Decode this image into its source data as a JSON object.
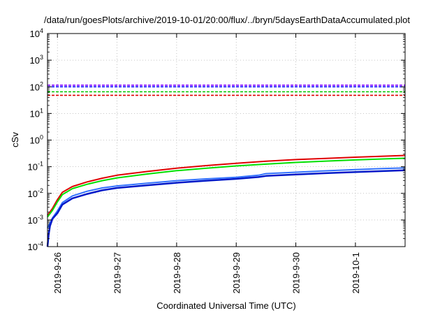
{
  "chart_data": {
    "type": "line",
    "title": "/data/run/goesPlots/archive/2019-10-01/20:00/flux/../bryn/5daysEarthDataAccumulated.plot",
    "xlabel": "Coordinated Universal Time (UTC)",
    "ylabel": "cSv",
    "yscale": "log",
    "ylim": [
      0.0001,
      10000
    ],
    "xlim": [
      "2019-09-25 20:00",
      "2019-10-01 20:00"
    ],
    "grid": true,
    "x_ticks": [
      {
        "date": "2019-09-26 00:00",
        "label": "2019-9-26"
      },
      {
        "date": "2019-09-27 00:00",
        "label": "2019-9-27"
      },
      {
        "date": "2019-09-28 00:00",
        "label": "2019-9-28"
      },
      {
        "date": "2019-09-29 00:00",
        "label": "2019-9-29"
      },
      {
        "date": "2019-09-30 00:00",
        "label": "2019-9-30"
      },
      {
        "date": "2019-10-01 00:00",
        "label": "2019-10-1"
      }
    ],
    "y_ticks": [
      {
        "value": 0.0001,
        "base": "10",
        "exp": "-4"
      },
      {
        "value": 0.001,
        "base": "10",
        "exp": "-3"
      },
      {
        "value": 0.01,
        "base": "10",
        "exp": "-2"
      },
      {
        "value": 0.1,
        "base": "10",
        "exp": "-1"
      },
      {
        "value": 1,
        "base": "10",
        "exp": "0"
      },
      {
        "value": 10,
        "base": "10",
        "exp": "1"
      },
      {
        "value": 100,
        "base": "10",
        "exp": "2"
      },
      {
        "value": 1000,
        "base": "10",
        "exp": "3"
      },
      {
        "value": 10000,
        "base": "10",
        "exp": "4"
      }
    ],
    "thresholds": [
      {
        "color": "#8000ff",
        "value": 115
      },
      {
        "color": "#0000ff",
        "value": 100
      },
      {
        "color": "#00c800",
        "value": 65
      },
      {
        "color": "#e00000",
        "value": 48
      }
    ],
    "series": [
      {
        "color": "#e00000",
        "width": 2,
        "x": [
          "2019-09-25 20:00",
          "2019-09-25 22:00",
          "2019-09-26 00:00",
          "2019-09-26 02:00",
          "2019-09-26 06:00",
          "2019-09-26 12:00",
          "2019-09-26 18:00",
          "2019-09-27 00:00",
          "2019-09-27 12:00",
          "2019-09-28 00:00",
          "2019-09-28 12:00",
          "2019-09-29 00:00",
          "2019-09-29 12:00",
          "2019-09-30 00:00",
          "2019-09-30 12:00",
          "2019-10-01 00:00",
          "2019-10-01 12:00",
          "2019-10-01 20:00"
        ],
        "y": [
          0.0015,
          0.0027,
          0.0058,
          0.011,
          0.018,
          0.027,
          0.037,
          0.048,
          0.066,
          0.088,
          0.11,
          0.135,
          0.16,
          0.185,
          0.205,
          0.228,
          0.25,
          0.265
        ]
      },
      {
        "color": "#00e000",
        "width": 2,
        "x": [
          "2019-09-25 20:00",
          "2019-09-25 22:00",
          "2019-09-26 00:00",
          "2019-09-26 02:00",
          "2019-09-26 06:00",
          "2019-09-26 12:00",
          "2019-09-26 18:00",
          "2019-09-27 00:00",
          "2019-09-27 12:00",
          "2019-09-28 00:00",
          "2019-09-28 12:00",
          "2019-09-29 00:00",
          "2019-09-29 12:00",
          "2019-09-30 00:00",
          "2019-09-30 12:00",
          "2019-10-01 00:00",
          "2019-10-01 12:00",
          "2019-10-01 20:00"
        ],
        "y": [
          0.0013,
          0.0023,
          0.0048,
          0.009,
          0.015,
          0.022,
          0.03,
          0.038,
          0.053,
          0.071,
          0.088,
          0.107,
          0.125,
          0.145,
          0.162,
          0.18,
          0.197,
          0.208
        ]
      },
      {
        "color": "#3070ff",
        "width": 2,
        "x": [
          "2019-09-25 20:00",
          "2019-09-25 22:00",
          "2019-09-26 00:00",
          "2019-09-26 02:00",
          "2019-09-26 06:00",
          "2019-09-26 12:00",
          "2019-09-26 18:00",
          "2019-09-27 00:00",
          "2019-09-27 12:00",
          "2019-09-28 00:00",
          "2019-09-28 12:00",
          "2019-09-29 00:00",
          "2019-09-29 09:00",
          "2019-09-29 12:00",
          "2019-09-30 00:00",
          "2019-09-30 12:00",
          "2019-10-01 00:00",
          "2019-10-01 12:00",
          "2019-10-01 20:00"
        ],
        "y": [
          0.0005,
          0.0012,
          0.0022,
          0.0045,
          0.008,
          0.012,
          0.016,
          0.019,
          0.024,
          0.03,
          0.035,
          0.04,
          0.048,
          0.055,
          0.062,
          0.07,
          0.078,
          0.086,
          0.09
        ]
      },
      {
        "color": "#0018c8",
        "width": 2.5,
        "x": [
          "2019-09-25 20:00",
          "2019-09-25 20:30",
          "2019-09-25 21:00",
          "2019-09-25 22:00",
          "2019-09-26 00:00",
          "2019-09-26 02:00",
          "2019-09-26 06:00",
          "2019-09-26 12:00",
          "2019-09-26 18:00",
          "2019-09-27 00:00",
          "2019-09-27 12:00",
          "2019-09-28 00:00",
          "2019-09-28 12:00",
          "2019-09-29 00:00",
          "2019-09-29 09:00",
          "2019-09-29 12:00",
          "2019-09-30 00:00",
          "2019-09-30 12:00",
          "2019-10-01 00:00",
          "2019-10-01 12:00",
          "2019-10-01 20:00"
        ],
        "y": [
          0.0001,
          0.0003,
          0.0006,
          0.0011,
          0.0018,
          0.0038,
          0.0065,
          0.0095,
          0.013,
          0.016,
          0.02,
          0.025,
          0.03,
          0.035,
          0.041,
          0.045,
          0.051,
          0.057,
          0.063,
          0.069,
          0.073
        ]
      }
    ]
  }
}
